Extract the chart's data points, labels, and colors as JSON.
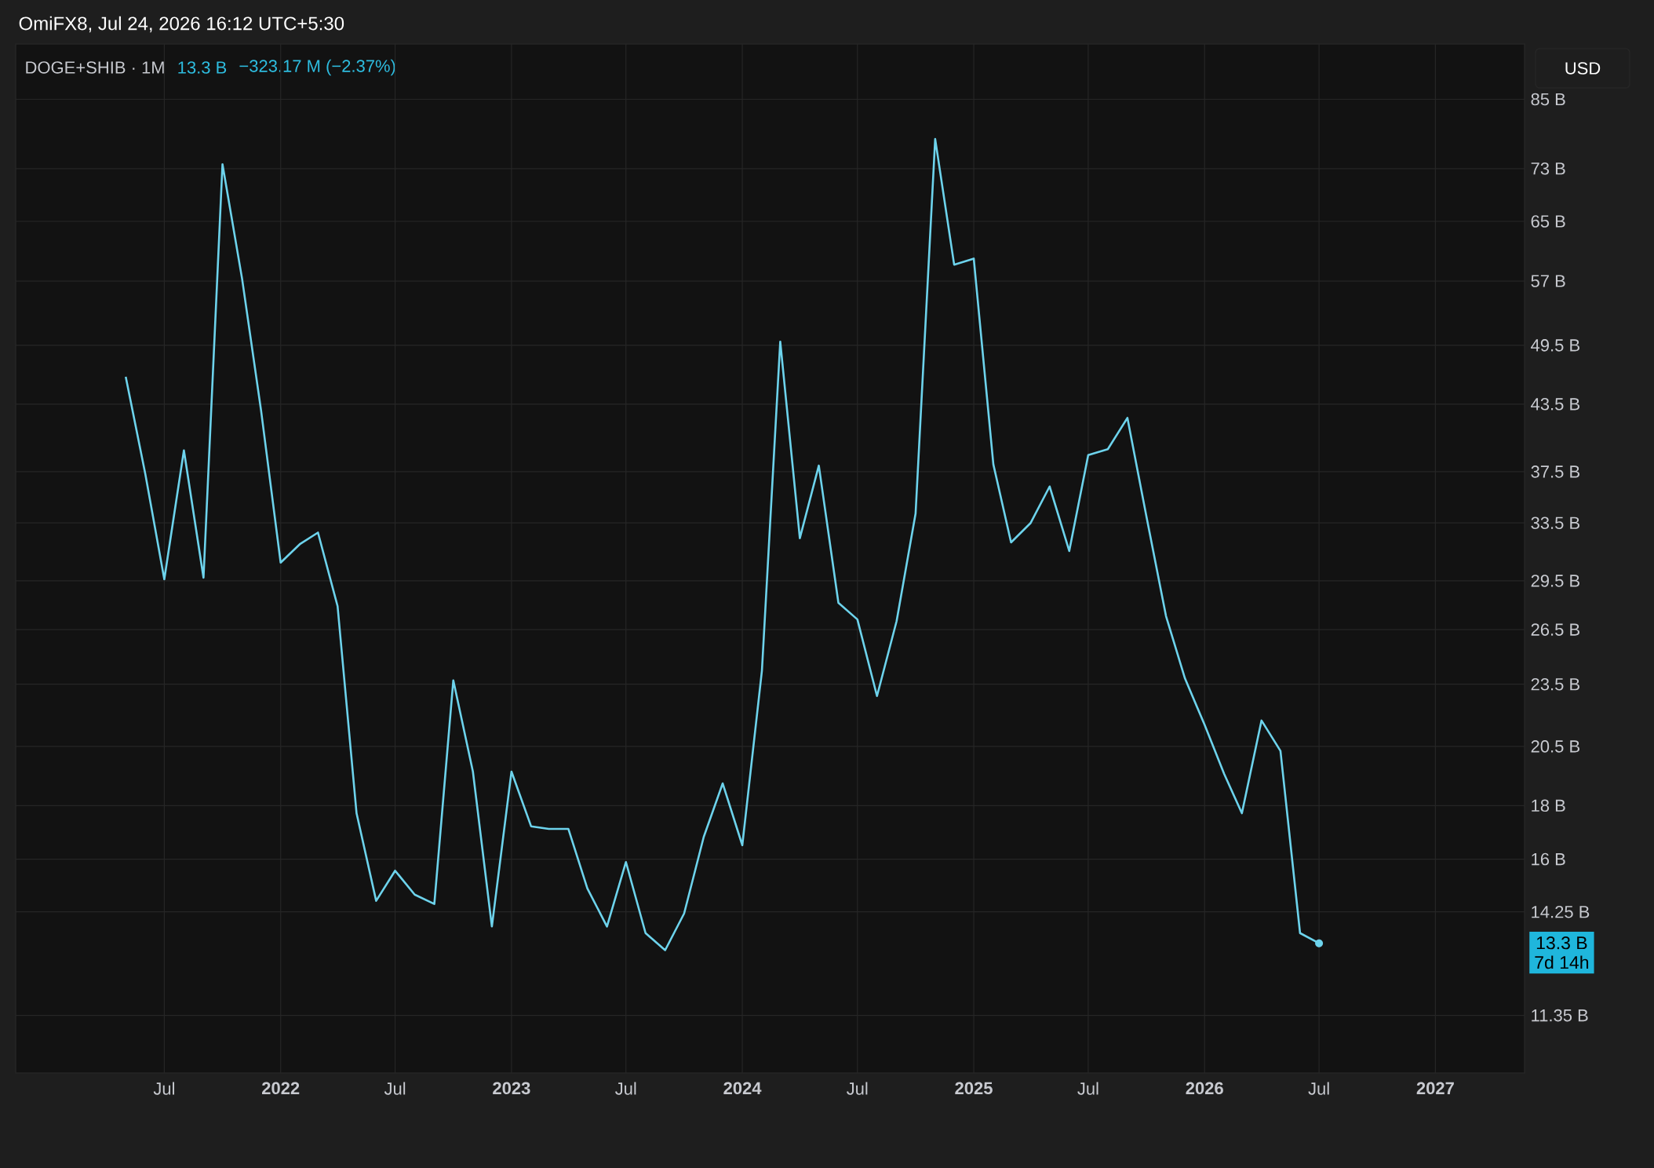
{
  "chart_data": {
    "type": "line",
    "title": "OmiFX8, Jul 24, 2026 16:12 UTC+5:30",
    "subtitle": "DOGE+SHIB · 1M",
    "annotations": [
      "13.3 B",
      "−323.17 M (−2.37%)",
      "USD",
      "13.3 B",
      "7d 14h"
    ],
    "x": [
      "2021-05",
      "2021-06",
      "2021-07",
      "2021-08",
      "2021-09",
      "2021-10",
      "2021-11",
      "2021-12",
      "2022-01",
      "2022-02",
      "2022-03",
      "2022-04",
      "2022-05",
      "2022-06",
      "2022-07",
      "2022-08",
      "2022-09",
      "2022-10",
      "2022-11",
      "2022-12",
      "2023-01",
      "2023-02",
      "2023-03",
      "2023-04",
      "2023-05",
      "2023-06",
      "2023-07",
      "2023-08",
      "2023-09",
      "2023-10",
      "2023-11",
      "2023-12",
      "2024-01",
      "2024-02",
      "2024-03",
      "2024-04",
      "2024-05",
      "2024-06",
      "2024-07",
      "2024-08",
      "2024-09",
      "2024-10",
      "2024-11",
      "2024-12",
      "2025-01",
      "2025-02",
      "2025-03",
      "2025-04",
      "2025-05",
      "2025-06",
      "2025-07",
      "2025-08",
      "2025-09",
      "2025-10",
      "2025-11",
      "2025-12",
      "2026-01",
      "2026-02",
      "2026-03",
      "2026-04",
      "2026-05",
      "2026-06",
      "2026-07"
    ],
    "series": [
      {
        "color": "#6dd3ec",
        "values": [
          46.2,
          37.3,
          29.6,
          39.3,
          29.7,
          73.7,
          57.3,
          42.9,
          30.7,
          32.0,
          32.8,
          27.9,
          17.7,
          14.6,
          15.6,
          14.8,
          14.5,
          23.7,
          19.4,
          13.8,
          19.4,
          17.2,
          17.1,
          17.1,
          15.0,
          13.8,
          15.9,
          13.6,
          13.1,
          14.2,
          16.8,
          18.9,
          16.5,
          24.2,
          49.9,
          32.4,
          38.0,
          28.1,
          27.1,
          22.9,
          27.0,
          34.2,
          77.9,
          59.1,
          59.9,
          38.1,
          32.1,
          33.5,
          36.3,
          31.5,
          38.9,
          39.4,
          42.2,
          34.0,
          27.3,
          23.8,
          21.5,
          19.3,
          17.7,
          21.7,
          20.3,
          13.6,
          13.3
        ]
      }
    ],
    "xlim": [
      "2020-11-08",
      "2027-05-22"
    ],
    "xticks": [
      {
        "value": "2021-07",
        "label": "Jul"
      },
      {
        "value": "2022",
        "label": "2022"
      },
      {
        "value": "2022-07",
        "label": "Jul"
      },
      {
        "value": "2023",
        "label": "2023"
      },
      {
        "value": "2023-07",
        "label": "Jul"
      },
      {
        "value": "2024",
        "label": "2024"
      },
      {
        "value": "2024-07",
        "label": "Jul"
      },
      {
        "value": "2025",
        "label": "2025"
      },
      {
        "value": "2025-07",
        "label": "Jul"
      },
      {
        "value": "2026",
        "label": "2026"
      },
      {
        "value": "2026-07",
        "label": "Jul"
      },
      {
        "value": "2027",
        "label": "2027"
      }
    ],
    "ylim": [
      10,
      96
    ],
    "log": true,
    "yticks": [
      {
        "value": 11.35,
        "label": "11.35 B"
      },
      {
        "value": 14.25,
        "label": "14.25 B"
      },
      {
        "value": 16,
        "label": "16 B"
      },
      {
        "value": 18,
        "label": "18 B"
      },
      {
        "value": 20.5,
        "label": "20.5 B"
      },
      {
        "value": 23.5,
        "label": "23.5 B"
      },
      {
        "value": 26.5,
        "label": "26.5 B"
      },
      {
        "value": 29.5,
        "label": "29.5 B"
      },
      {
        "value": 33.5,
        "label": "33.5 B"
      },
      {
        "value": 37.5,
        "label": "37.5 B"
      },
      {
        "value": 43.5,
        "label": "43.5 B"
      },
      {
        "value": 49.5,
        "label": "49.5 B"
      },
      {
        "value": 57,
        "label": "57 B"
      },
      {
        "value": 65,
        "label": "65 B"
      },
      {
        "value": 73,
        "label": "73 B"
      },
      {
        "value": 85,
        "label": "85 B"
      }
    ],
    "grid": true
  }
}
